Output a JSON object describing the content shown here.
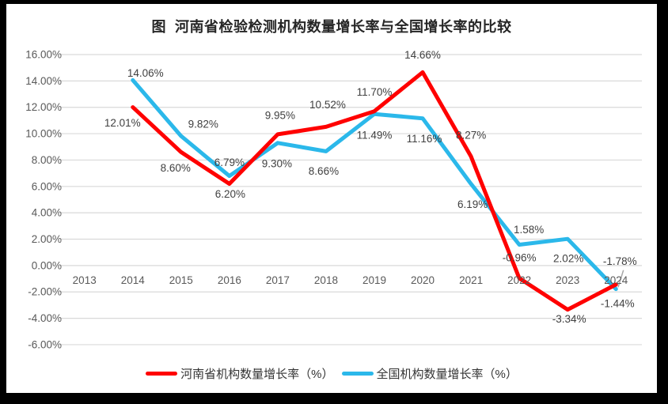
{
  "chart_data": {
    "type": "line",
    "title": "图  河南省检验检测机构数量增长率与全国增长率的比较",
    "categories": [
      "2013",
      "2014",
      "2015",
      "2016",
      "2017",
      "2018",
      "2019",
      "2020",
      "2021",
      "2022",
      "2023",
      "2024"
    ],
    "y_axis": {
      "min": -6,
      "max": 16,
      "step": 2,
      "tick_labels": [
        "16.00%",
        "14.00%",
        "12.00%",
        "10.00%",
        "8.00%",
        "6.00%",
        "4.00%",
        "2.00%",
        "0.00%",
        "-2.00%",
        "-4.00%",
        "-6.00%"
      ]
    },
    "grid": true,
    "legend_position": "bottom",
    "series": [
      {
        "name": "河南省机构数量增长率（%）",
        "color": "#FF0000",
        "values": [
          null,
          12.01,
          8.6,
          6.2,
          9.95,
          10.52,
          11.7,
          14.66,
          8.27,
          -0.96,
          -3.34,
          -1.44
        ],
        "data_labels": [
          null,
          "12.01%",
          "8.60%",
          "6.20%",
          "9.95%",
          "10.52%",
          "11.70%",
          "14.66%",
          "8.27%",
          "-0.96%",
          "-3.34%",
          "-1.44%"
        ]
      },
      {
        "name": "全国机构数量增长率（%）",
        "color": "#2BB8EA",
        "values": [
          null,
          14.06,
          9.82,
          6.79,
          9.3,
          8.66,
          11.49,
          11.16,
          6.19,
          1.58,
          2.02,
          -1.78
        ],
        "data_labels": [
          null,
          "14.06%",
          "9.82%",
          "6.79%",
          "9.30%",
          "8.66%",
          "11.49%",
          "11.16%",
          "6.19%",
          "1.58%",
          "2.02%",
          "-1.78%"
        ]
      }
    ],
    "colors": {
      "grid": "#D9D9D9",
      "axis_text": "#595959",
      "data_label_text": "#404040",
      "leader_line": "#A6A6A6",
      "frame": "#000000",
      "background": "#FFFFFF"
    }
  }
}
